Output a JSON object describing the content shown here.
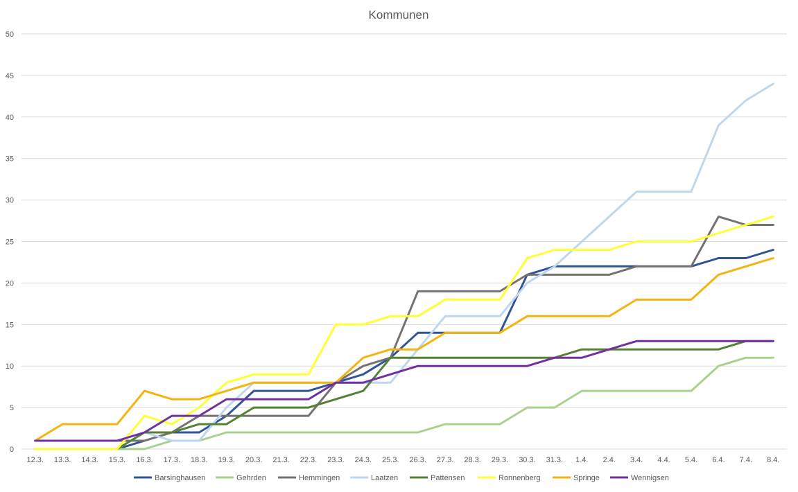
{
  "chart_data": {
    "type": "line",
    "title": "Kommunen",
    "xlabel": "",
    "ylabel": "",
    "ylim": [
      0,
      50
    ],
    "ytick_step": 5,
    "grid": true,
    "legend_position": "bottom",
    "categories": [
      "12.3.",
      "13.3.",
      "14.3.",
      "15.3.",
      "16.3.",
      "17.3.",
      "18.3.",
      "19.3.",
      "20.3.",
      "21.3.",
      "22.3.",
      "23.3.",
      "24.3.",
      "25.3.",
      "26.3.",
      "27.3.",
      "28.3.",
      "29.3.",
      "30.3.",
      "31.3.",
      "1.4.",
      "2.4.",
      "3.4.",
      "4.4.",
      "5.4.",
      "6.4.",
      "7.4.",
      "8.4."
    ],
    "series": [
      {
        "name": "Barsinghausen",
        "color": "#2f5597",
        "values": [
          0,
          0,
          0,
          0,
          1,
          2,
          2,
          4,
          7,
          7,
          7,
          8,
          9,
          11,
          14,
          14,
          14,
          14,
          21,
          22,
          22,
          22,
          22,
          22,
          22,
          23,
          23,
          24
        ]
      },
      {
        "name": "Gehrden",
        "color": "#a9d18e",
        "values": [
          0,
          0,
          0,
          0,
          0,
          1,
          1,
          2,
          2,
          2,
          2,
          2,
          2,
          2,
          2,
          3,
          3,
          3,
          5,
          5,
          7,
          7,
          7,
          7,
          7,
          10,
          11,
          11
        ]
      },
      {
        "name": "Hemmingen",
        "color": "#767171",
        "values": [
          1,
          1,
          1,
          1,
          1,
          2,
          4,
          4,
          4,
          4,
          4,
          8,
          10,
          11,
          19,
          19,
          19,
          19,
          21,
          21,
          21,
          21,
          22,
          22,
          22,
          28,
          27,
          27
        ]
      },
      {
        "name": "Laatzen",
        "color": "#bdd7ee",
        "values": [
          0,
          0,
          0,
          0,
          2,
          1,
          1,
          5,
          8,
          8,
          8,
          8,
          8,
          8,
          12,
          16,
          16,
          16,
          20,
          22,
          25,
          28,
          31,
          31,
          31,
          39,
          42,
          44
        ]
      },
      {
        "name": "Pattensen",
        "color": "#548235",
        "values": [
          0,
          0,
          0,
          0,
          2,
          2,
          3,
          3,
          5,
          5,
          5,
          6,
          7,
          11,
          11,
          11,
          11,
          11,
          11,
          11,
          12,
          12,
          12,
          12,
          12,
          12,
          13,
          13
        ]
      },
      {
        "name": "Ronnenberg",
        "color": "#ffff33",
        "values": [
          0,
          0,
          0,
          0,
          4,
          3,
          5,
          8,
          9,
          9,
          9,
          15,
          15,
          16,
          16,
          18,
          18,
          18,
          23,
          24,
          24,
          24,
          25,
          25,
          25,
          26,
          27,
          28
        ]
      },
      {
        "name": "Springe",
        "color": "#f4b40f",
        "values": [
          1,
          3,
          3,
          3,
          7,
          6,
          6,
          7,
          8,
          8,
          8,
          8,
          11,
          12,
          12,
          14,
          14,
          14,
          16,
          16,
          16,
          16,
          18,
          18,
          18,
          21,
          22,
          23
        ]
      },
      {
        "name": "Wennigsen",
        "color": "#7030a0",
        "values": [
          1,
          1,
          1,
          1,
          2,
          4,
          4,
          6,
          6,
          6,
          6,
          8,
          8,
          9,
          10,
          10,
          10,
          10,
          10,
          11,
          11,
          12,
          13,
          13,
          13,
          13,
          13,
          13
        ]
      }
    ]
  }
}
